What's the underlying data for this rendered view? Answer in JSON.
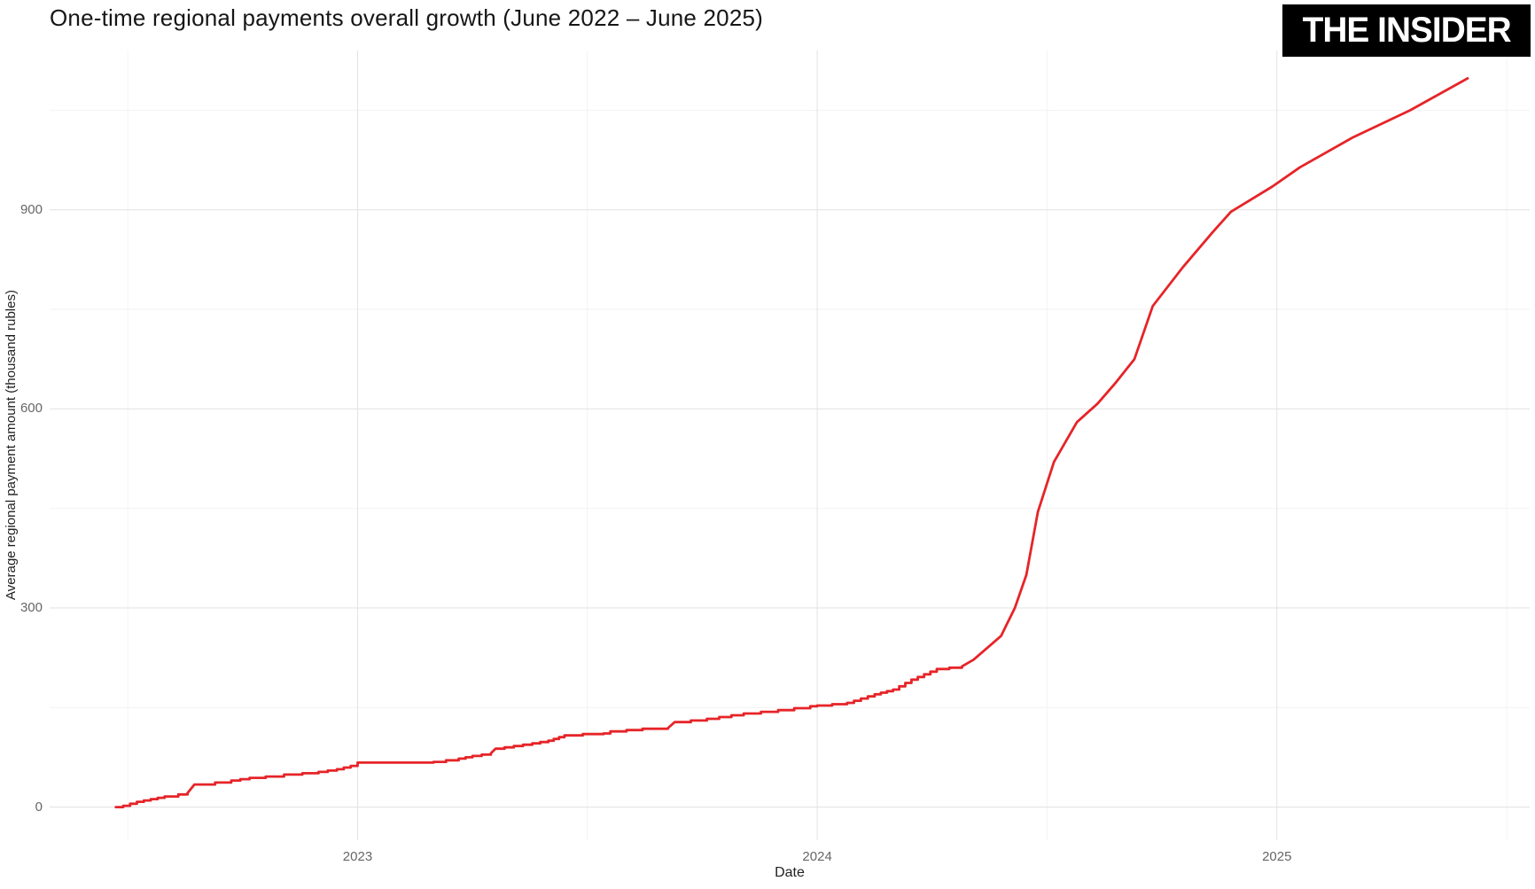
{
  "header": {
    "title": "One-time regional payments overall growth (June 2022 – June 2025)"
  },
  "logo": {
    "text": "THE INSIDER"
  },
  "colors": {
    "line": "#e62428",
    "grid_major": "#e4e4e4",
    "grid_minor": "#f2f2f2",
    "tick_label": "#666666",
    "text": "#1f1f1f",
    "logo_bg": "#000000",
    "logo_text": "#ffffff",
    "background": "#ffffff"
  },
  "chart_data": {
    "type": "line",
    "title": "One-time regional payments overall growth (June 2022 – June 2025)",
    "xlabel": "Date",
    "ylabel": "Average regional payment amount (thousand rubles)",
    "legend": false,
    "grid": true,
    "xlim": [
      2022.33,
      2025.55
    ],
    "ylim": [
      -50,
      1140
    ],
    "x_ticks": [
      2023,
      2024,
      2025
    ],
    "x_tick_labels": [
      "2023",
      "2024",
      "2025"
    ],
    "x_minor_ticks": [
      2022.5,
      2023.5,
      2024.5,
      2025.5
    ],
    "y_ticks": [
      0,
      300,
      600,
      900
    ],
    "y_tick_labels": [
      "0",
      "300",
      "600",
      "900"
    ],
    "y_minor_ticks": [
      150,
      450,
      750,
      1050
    ],
    "series": [
      {
        "name": "Average regional payment amount",
        "units": "thousand rubles",
        "style": "stepped-cumulative",
        "points": [
          [
            2022.474,
            0
          ],
          [
            2022.49,
            2
          ],
          [
            2022.52,
            8
          ],
          [
            2022.55,
            12
          ],
          [
            2022.58,
            16
          ],
          [
            2022.61,
            19
          ],
          [
            2022.63,
            21
          ],
          [
            2022.645,
            34
          ],
          [
            2022.69,
            37
          ],
          [
            2022.725,
            40
          ],
          [
            2022.765,
            44
          ],
          [
            2022.8,
            46
          ],
          [
            2022.84,
            49
          ],
          [
            2022.88,
            51
          ],
          [
            2022.915,
            53
          ],
          [
            2022.955,
            57
          ],
          [
            2022.985,
            62
          ],
          [
            2023.0,
            67
          ],
          [
            2023.165,
            68
          ],
          [
            2023.22,
            73
          ],
          [
            2023.25,
            77
          ],
          [
            2023.29,
            81
          ],
          [
            2023.3,
            88
          ],
          [
            2023.34,
            92
          ],
          [
            2023.38,
            96
          ],
          [
            2023.415,
            100
          ],
          [
            2023.45,
            108
          ],
          [
            2023.49,
            110
          ],
          [
            2023.535,
            111
          ],
          [
            2023.55,
            114
          ],
          [
            2023.62,
            118
          ],
          [
            2023.675,
            119
          ],
          [
            2023.69,
            128
          ],
          [
            2023.76,
            133
          ],
          [
            2023.84,
            141
          ],
          [
            2023.915,
            146
          ],
          [
            2023.985,
            152
          ],
          [
            2024.0,
            153
          ],
          [
            2024.065,
            157
          ],
          [
            2024.125,
            170
          ],
          [
            2024.165,
            177
          ],
          [
            2024.205,
            192
          ],
          [
            2024.26,
            208
          ],
          [
            2024.315,
            212
          ],
          [
            2024.34,
            222
          ],
          [
            2024.37,
            240
          ],
          [
            2024.4,
            258
          ],
          [
            2024.43,
            300
          ],
          [
            2024.455,
            350
          ],
          [
            2024.48,
            445
          ],
          [
            2024.515,
            520
          ],
          [
            2024.565,
            580
          ],
          [
            2024.61,
            608
          ],
          [
            2024.65,
            640
          ],
          [
            2024.69,
            675
          ],
          [
            2024.73,
            755
          ],
          [
            2024.795,
            813
          ],
          [
            2024.86,
            866
          ],
          [
            2024.9,
            897
          ],
          [
            2024.99,
            935
          ],
          [
            2025.05,
            964
          ],
          [
            2025.165,
            1009
          ],
          [
            2025.29,
            1050
          ],
          [
            2025.415,
            1098
          ]
        ]
      }
    ]
  }
}
